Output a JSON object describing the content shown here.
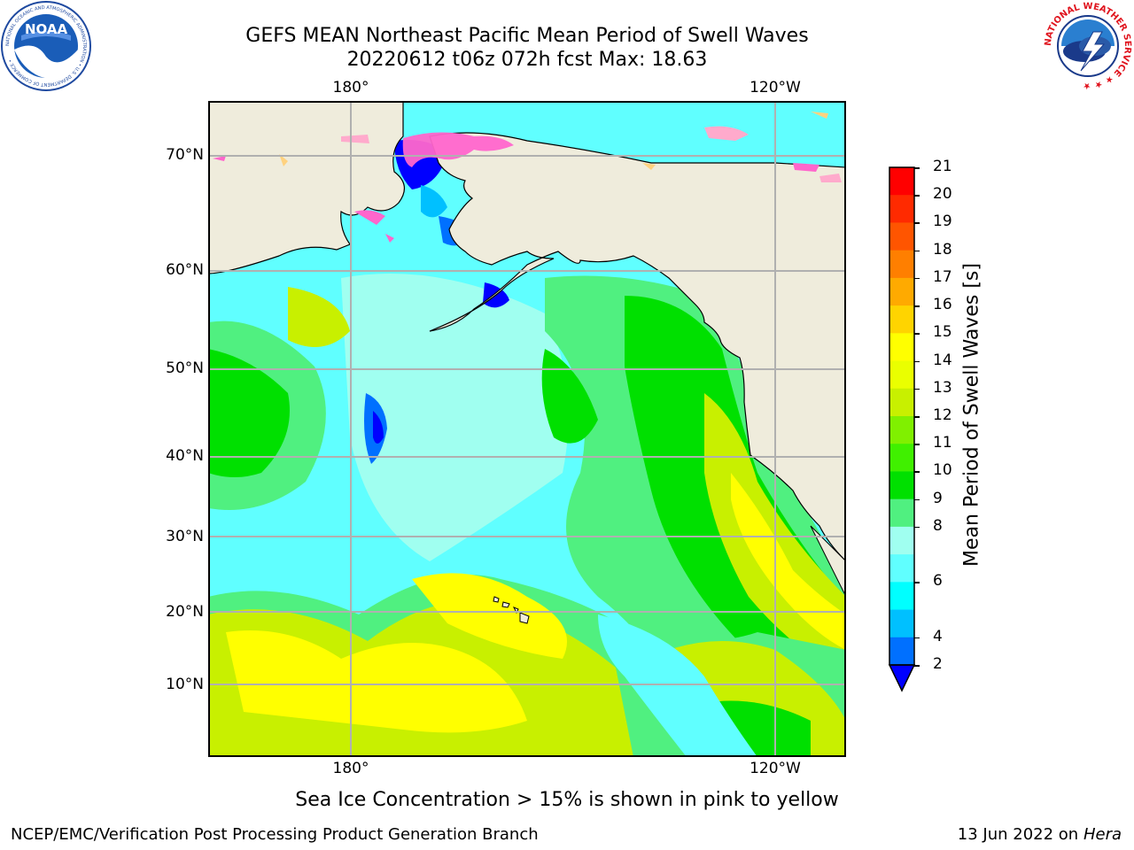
{
  "title_line1": "GEFS MEAN Northeast Pacific Mean Period of Swell Waves",
  "title_line2": "20220612 t06z 072h fcst   Max: 18.63",
  "map": {
    "lon_labels_top": [
      "180°",
      "120°W"
    ],
    "lon_labels_bottom": [
      "180°",
      "120°W"
    ],
    "lat_labels": [
      "70°N",
      "60°N",
      "50°N",
      "40°N",
      "30°N",
      "20°N",
      "10°N"
    ],
    "land_color": "#efecdc",
    "ice_colors": [
      "#ff66cc",
      "#ffaacc",
      "#ffd27f",
      "#ffff66"
    ],
    "grid_color": "#b0b0b0"
  },
  "colorbar": {
    "label": "Mean Period of Swell Waves [s]",
    "ticks": [
      "21",
      "20",
      "19",
      "18",
      "17",
      "16",
      "15",
      "14",
      "13",
      "12",
      "11",
      "10",
      "9",
      "8",
      "6",
      "4",
      "2"
    ],
    "colors_top_to_bottom": [
      "#ff0000",
      "#ff2a00",
      "#ff5500",
      "#ff7f00",
      "#ffaa00",
      "#ffd400",
      "#ffff00",
      "#eaff00",
      "#c8f000",
      "#80f000",
      "#40f000",
      "#00e000",
      "#50f080",
      "#a0fff0",
      "#60ffff",
      "#00ffff",
      "#00c0ff",
      "#0070ff"
    ],
    "extend_color": "#0000ff"
  },
  "caption": "Sea Ice Concentration > 15% is shown in pink to yellow",
  "footer_left": "NCEP/EMC/Verification Post Processing Product Generation Branch",
  "footer_right_prefix": "13 Jun 2022 on",
  "footer_right_host": "Hera",
  "logos": {
    "noaa_text": "NOAA",
    "noaa_ring": "NATIONAL OCEANIC AND ATMOSPHERIC ADMINISTRATION • U.S. DEPARTMENT OF COMMERCE •",
    "nws_ring": "NATIONAL WEATHER SERVICE ★ ★ ★"
  }
}
